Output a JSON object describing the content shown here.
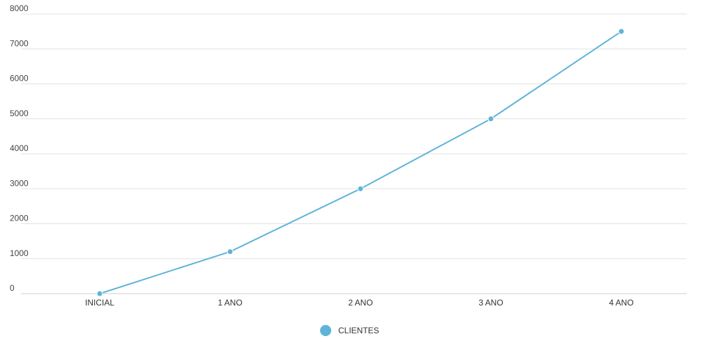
{
  "chart_data": {
    "type": "line",
    "categories": [
      "INICIAL",
      "1 ANO",
      "2 ANO",
      "3 ANO",
      "4 ANO"
    ],
    "series": [
      {
        "name": "CLIENTES",
        "values": [
          0,
          1200,
          3000,
          5000,
          7500
        ],
        "color": "#5fb3d9"
      }
    ],
    "ylim": [
      0,
      8000
    ],
    "yticks": [
      "0",
      "1000",
      "2000",
      "3000",
      "4000",
      "5000",
      "6000",
      "7000",
      "8000"
    ],
    "grid": true,
    "legend": "bottom-center"
  }
}
